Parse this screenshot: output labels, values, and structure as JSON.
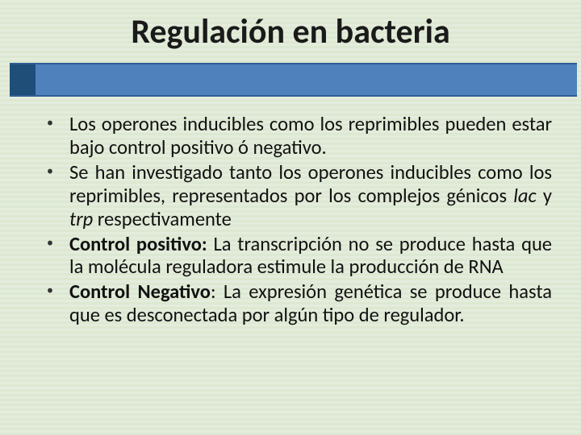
{
  "slide": {
    "title": "Regulación en bacteria",
    "background_color": "#e4ecdc",
    "stripe_color_a": "#e4ecdc",
    "stripe_color_b": "#dde8d2",
    "bar_color": "#4f81bd",
    "bar_border_color": "#2e5d93",
    "accent_color": "#1f4e79",
    "title_fontsize": 42,
    "title_color": "#1a1a1a",
    "body_fontsize": 24.5,
    "body_color": "#111111",
    "bullets": [
      {
        "runs": [
          {
            "text": "Los operones inducibles como los reprimibles pueden estar bajo control positivo ó negativo.",
            "bold": false,
            "italic": false
          }
        ]
      },
      {
        "runs": [
          {
            "text": "Se han investigado  tanto los operones inducibles como los reprimibles, representados por los complejos génicos ",
            "bold": false,
            "italic": false
          },
          {
            "text": "lac",
            "bold": false,
            "italic": true
          },
          {
            "text": " y ",
            "bold": false,
            "italic": false
          },
          {
            "text": "trp",
            "bold": false,
            "italic": true
          },
          {
            "text": " respectivamente",
            "bold": false,
            "italic": false
          }
        ]
      },
      {
        "runs": [
          {
            "text": "Control positivo:",
            "bold": true,
            "italic": false
          },
          {
            "text": "  La transcripción no se produce hasta que la molécula reguladora estimule la producción de RNA",
            "bold": false,
            "italic": false
          }
        ]
      },
      {
        "runs": [
          {
            "text": "Control Negativo",
            "bold": true,
            "italic": false
          },
          {
            "text": ": La expresión genética se produce hasta que es desconectada por algún tipo de regulador.",
            "bold": false,
            "italic": false
          }
        ]
      }
    ]
  }
}
